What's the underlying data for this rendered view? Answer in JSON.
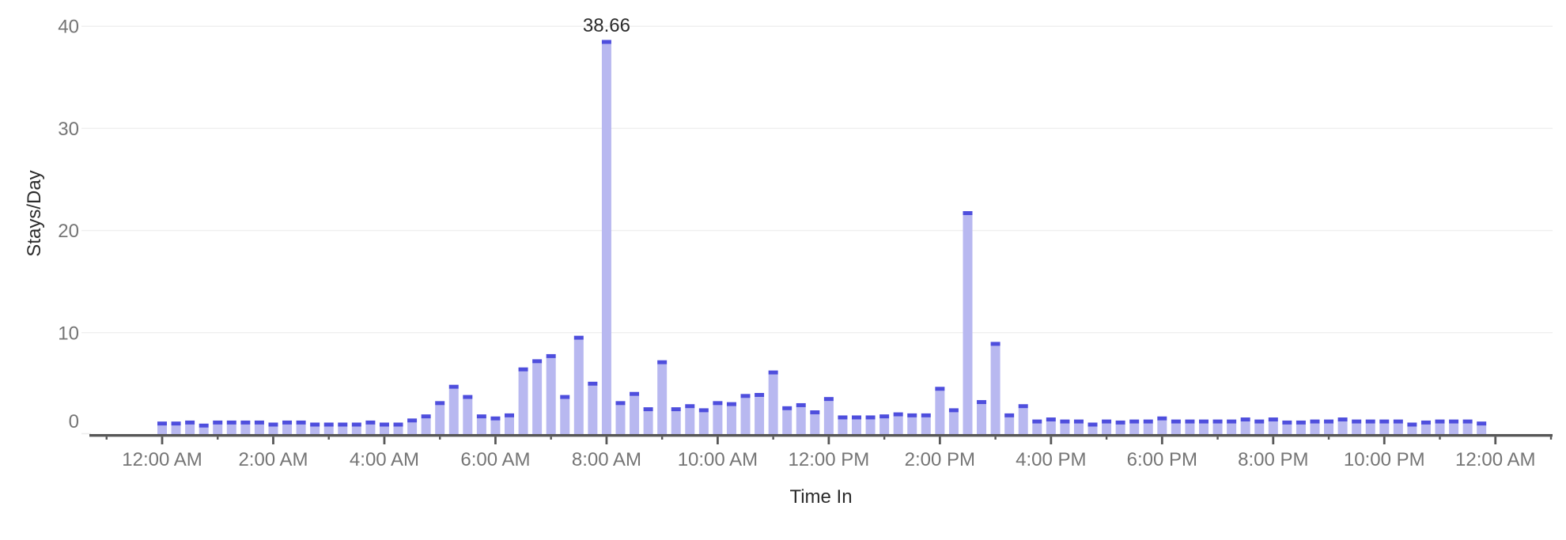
{
  "chart_data": {
    "type": "bar",
    "title": "",
    "xlabel": "Time In",
    "ylabel": "Stays/Day",
    "ylim": [
      0,
      40
    ],
    "yticks": [
      0,
      10,
      20,
      30,
      40
    ],
    "ytick_labels": [
      "0",
      "10",
      "20",
      "30",
      "40"
    ],
    "xtick_labels": [
      "12:00 AM",
      "2:00 AM",
      "4:00 AM",
      "6:00 AM",
      "8:00 AM",
      "10:00 AM",
      "12:00 PM",
      "2:00 PM",
      "4:00 PM",
      "6:00 PM",
      "8:00 PM",
      "10:00 PM",
      "12:00 AM"
    ],
    "x_interval_minutes": 15,
    "grid": "horizontal",
    "legend": "none",
    "x": [
      "12:00 AM",
      "12:15 AM",
      "12:30 AM",
      "12:45 AM",
      "1:00 AM",
      "1:15 AM",
      "1:30 AM",
      "1:45 AM",
      "2:00 AM",
      "2:15 AM",
      "2:30 AM",
      "2:45 AM",
      "3:00 AM",
      "3:15 AM",
      "3:30 AM",
      "3:45 AM",
      "4:00 AM",
      "4:15 AM",
      "4:30 AM",
      "4:45 AM",
      "5:00 AM",
      "5:15 AM",
      "5:30 AM",
      "5:45 AM",
      "6:00 AM",
      "6:15 AM",
      "6:30 AM",
      "6:45 AM",
      "7:00 AM",
      "7:15 AM",
      "7:30 AM",
      "7:45 AM",
      "8:00 AM",
      "8:15 AM",
      "8:30 AM",
      "8:45 AM",
      "9:00 AM",
      "9:15 AM",
      "9:30 AM",
      "9:45 AM",
      "10:00 AM",
      "10:15 AM",
      "10:30 AM",
      "10:45 AM",
      "11:00 AM",
      "11:15 AM",
      "11:30 AM",
      "11:45 AM",
      "12:00 PM",
      "12:15 PM",
      "12:30 PM",
      "12:45 PM",
      "1:00 PM",
      "1:15 PM",
      "1:30 PM",
      "1:45 PM",
      "2:00 PM",
      "2:15 PM",
      "2:30 PM",
      "2:45 PM",
      "3:00 PM",
      "3:15 PM",
      "3:30 PM",
      "3:45 PM",
      "4:00 PM",
      "4:15 PM",
      "4:30 PM",
      "4:45 PM",
      "5:00 PM",
      "5:15 PM",
      "5:30 PM",
      "5:45 PM",
      "6:00 PM",
      "6:15 PM",
      "6:30 PM",
      "6:45 PM",
      "7:00 PM",
      "7:15 PM",
      "7:30 PM",
      "7:45 PM",
      "8:00 PM",
      "8:15 PM",
      "8:30 PM",
      "8:45 PM",
      "9:00 PM",
      "9:15 PM",
      "9:30 PM",
      "9:45 PM",
      "10:00 PM",
      "10:15 PM",
      "10:30 PM",
      "10:45 PM",
      "11:00 PM",
      "11:15 PM",
      "11:30 PM",
      "11:45 PM"
    ],
    "values": [
      1.3,
      1.3,
      1.4,
      1.1,
      1.4,
      1.4,
      1.4,
      1.4,
      1.2,
      1.4,
      1.4,
      1.2,
      1.2,
      1.2,
      1.2,
      1.4,
      1.2,
      1.2,
      1.6,
      2.0,
      3.3,
      4.9,
      3.9,
      2.0,
      1.8,
      2.1,
      6.6,
      7.4,
      7.9,
      3.9,
      9.7,
      5.2,
      38.66,
      3.3,
      4.2,
      2.7,
      7.3,
      2.7,
      3.0,
      2.6,
      3.3,
      3.2,
      4.0,
      4.1,
      6.3,
      2.8,
      3.1,
      2.4,
      3.7,
      1.9,
      1.9,
      1.9,
      2.0,
      2.2,
      2.1,
      2.1,
      4.7,
      2.6,
      21.9,
      3.4,
      9.1,
      2.1,
      3.0,
      1.5,
      1.7,
      1.5,
      1.5,
      1.2,
      1.5,
      1.4,
      1.5,
      1.5,
      1.8,
      1.5,
      1.5,
      1.5,
      1.5,
      1.5,
      1.7,
      1.5,
      1.7,
      1.4,
      1.4,
      1.5,
      1.5,
      1.7,
      1.5,
      1.5,
      1.5,
      1.5,
      1.2,
      1.4,
      1.5,
      1.5,
      1.5,
      1.3
    ],
    "annotations": [
      {
        "text": "38.66",
        "x": "8:00 AM",
        "y": 38.66
      }
    ],
    "colors": {
      "bar_fill": "#b8b8f0",
      "bar_cap": "#4e4edd",
      "gridline": "#f0f0f0",
      "axis_line": "#575757",
      "tick_label": "#757575",
      "axis_title": "#2b2b2b",
      "annotation": "#2b2b2b",
      "background": "#ffffff"
    }
  }
}
